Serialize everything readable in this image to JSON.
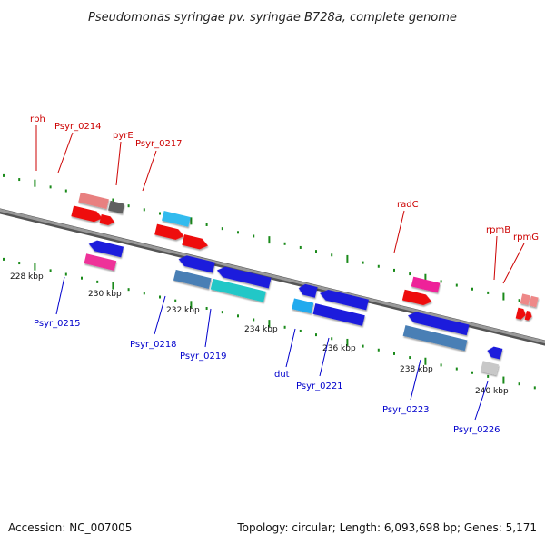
{
  "title": "Pseudomonas syringae pv. syringae B728a, complete genome",
  "footer": {
    "accession": "Accession: NC_007005",
    "summary": "Topology: circular; Length: 6,093,698 bp; Genes: 5,171"
  },
  "colors": {
    "backbone": "#808080",
    "tick": "#1a8a1a",
    "top_label": "#cc0000",
    "bottom_label": "#0000cc"
  },
  "scale_labels": [
    "228 kbp",
    "230 kbp",
    "232 kbp",
    "234 kbp",
    "236 kbp",
    "238 kbp",
    "240 kbp"
  ],
  "top_labels": [
    "rph",
    "Psyr_0214",
    "pyrE",
    "Psyr_0217",
    "radC",
    "rpmB",
    "rpmG"
  ],
  "bottom_labels": [
    "Psyr_0215",
    "Psyr_0218",
    "Psyr_0219",
    "dut",
    "Psyr_0221",
    "Psyr_0223",
    "Psyr_0226"
  ]
}
